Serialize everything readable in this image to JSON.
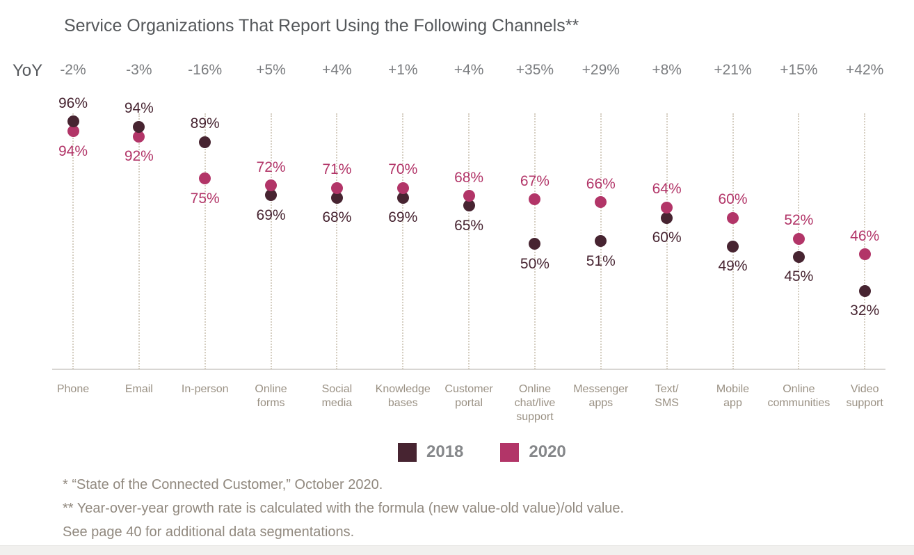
{
  "chart_data": {
    "type": "scatter",
    "title": "Service Organizations That Report Using the Following Channels**",
    "yoy_row_label": "YoY",
    "categories": [
      [
        "Phone"
      ],
      [
        "Email"
      ],
      [
        "In-person"
      ],
      [
        "Online",
        "forms"
      ],
      [
        "Social",
        "media"
      ],
      [
        "Knowledge",
        "bases"
      ],
      [
        "Customer",
        "portal"
      ],
      [
        "Online",
        "chat/live",
        "support"
      ],
      [
        "Messenger",
        "apps"
      ],
      [
        "Text/",
        "SMS"
      ],
      [
        "Mobile",
        "app"
      ],
      [
        "Online",
        "communities"
      ],
      [
        "Video",
        "support"
      ]
    ],
    "yoy_values": [
      "-2%",
      "-3%",
      "-16%",
      "+5%",
      "+4%",
      "+1%",
      "+4%",
      "+35%",
      "+29%",
      "+8%",
      "+21%",
      "+15%",
      "+42%"
    ],
    "series": [
      {
        "name": "2018",
        "color": "#472431",
        "values": [
          96,
          94,
          89,
          69,
          68,
          69,
          65,
          50,
          51,
          60,
          49,
          45,
          32
        ]
      },
      {
        "name": "2020",
        "color": "#b23568",
        "values": [
          94,
          92,
          75,
          72,
          71,
          70,
          68,
          67,
          66,
          64,
          60,
          52,
          46
        ]
      }
    ],
    "value_suffix": "%",
    "ylim": [
      0,
      100
    ],
    "grid": "vertical-dotted",
    "legend_position": "bottom"
  },
  "legend": {
    "items": [
      {
        "label": "2018",
        "color": "#472431"
      },
      {
        "label": "2020",
        "color": "#b23568"
      }
    ]
  },
  "footnotes": [
    "* “State of the Connected Customer,” October 2020.",
    "** Year-over-year growth rate is calculated with the formula (new value-old value)/old value.",
    "See page 40 for additional data segmentations."
  ]
}
